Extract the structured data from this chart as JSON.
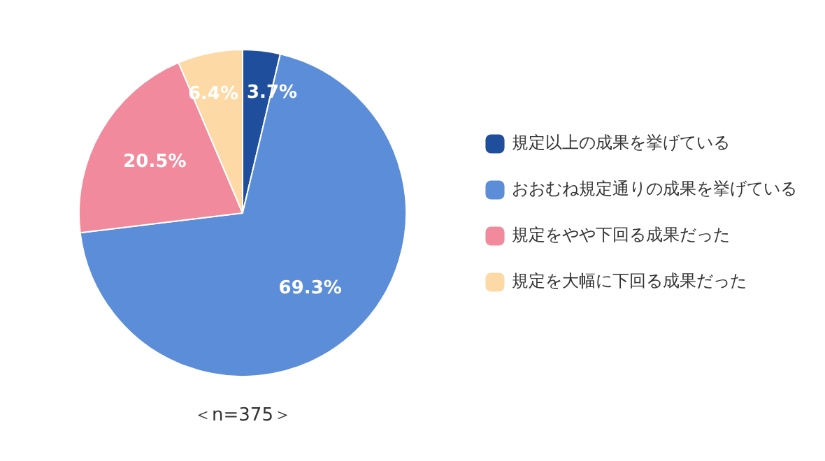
{
  "chart_data": {
    "type": "pie",
    "categories": [
      "規定以上の成果を挙げている",
      "おおむね規定通りの成果を挙げている",
      "規定をやや下回る成果だった",
      "規定を大幅に下回る成果だった"
    ],
    "values": [
      3.7,
      69.3,
      20.5,
      6.4
    ],
    "colors": [
      "#1f4e9c",
      "#5b8dd9",
      "#f08a9c",
      "#fdd9a6"
    ],
    "value_labels": [
      "3.7%",
      "69.3%",
      "20.5%",
      "6.4%"
    ],
    "legend": "right",
    "annotations": [
      "＜n=375＞"
    ]
  }
}
